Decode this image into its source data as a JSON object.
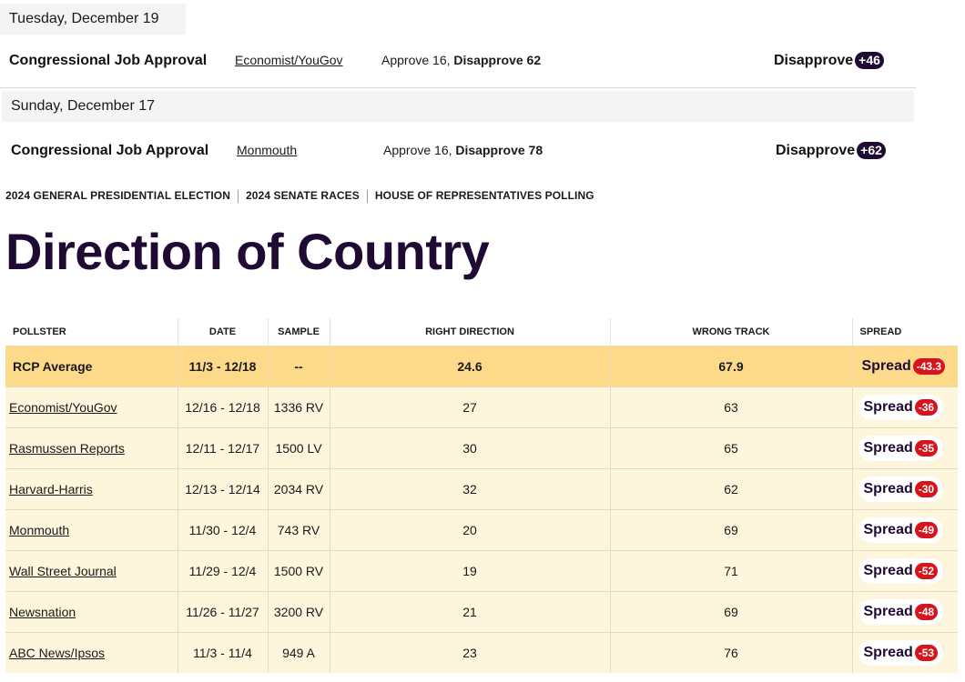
{
  "polls_by_day": [
    {
      "date": "Tuesday, December 19",
      "race": "Congressional Job Approval",
      "pollster": "Economist/YouGov",
      "approve_text": "Approve 16,",
      "disapprove_text": "Disapprove 62",
      "winner": "Disapprove",
      "margin": "+46"
    },
    {
      "date": "Sunday, December 17",
      "race": "Congressional Job Approval",
      "pollster": "Monmouth",
      "approve_text": "Approve 16,",
      "disapprove_text": "Disapprove 78",
      "winner": "Disapprove",
      "margin": "+62"
    }
  ],
  "topnav": {
    "items": [
      "2024 GENERAL PRESIDENTIAL ELECTION",
      "2024 SENATE RACES",
      "HOUSE OF REPRESENTATIVES POLLING"
    ]
  },
  "page_title": "Direction of Country",
  "table": {
    "headers": [
      "POLLSTER",
      "DATE",
      "SAMPLE",
      "RIGHT DIRECTION",
      "WRONG TRACK",
      "SPREAD"
    ],
    "average": {
      "pollster": "RCP Average",
      "date": "11/3 - 12/18",
      "sample": "--",
      "right": "24.6",
      "wrong": "67.9",
      "spread_label": "Spread",
      "spread": "-43.3"
    },
    "rows": [
      {
        "pollster": "Economist/YouGov",
        "date": "12/16 - 12/18",
        "sample": "1336 RV",
        "right": "27",
        "wrong": "63",
        "spread_label": "Spread",
        "spread": "-36"
      },
      {
        "pollster": "Rasmussen Reports",
        "date": "12/11 - 12/17",
        "sample": "1500 LV",
        "right": "30",
        "wrong": "65",
        "spread_label": "Spread",
        "spread": "-35"
      },
      {
        "pollster": "Harvard-Harris",
        "date": "12/13 - 12/14",
        "sample": "2034 RV",
        "right": "32",
        "wrong": "62",
        "spread_label": "Spread",
        "spread": "-30"
      },
      {
        "pollster": "Monmouth",
        "date": "11/30 - 12/4",
        "sample": "743 RV",
        "right": "20",
        "wrong": "69",
        "spread_label": "Spread",
        "spread": "-49"
      },
      {
        "pollster": "Wall Street Journal",
        "date": "11/29 - 12/4",
        "sample": "1500 RV",
        "right": "19",
        "wrong": "71",
        "spread_label": "Spread",
        "spread": "-52"
      },
      {
        "pollster": "Newsnation",
        "date": "11/26 - 11/27",
        "sample": "3200 RV",
        "right": "21",
        "wrong": "69",
        "spread_label": "Spread",
        "spread": "-48"
      },
      {
        "pollster": "ABC News/Ipsos",
        "date": "11/3 - 11/4",
        "sample": "949 A",
        "right": "23",
        "wrong": "76",
        "spread_label": "Spread",
        "spread": "-53"
      }
    ]
  },
  "colors": {
    "brand_dark": "#1f0a33",
    "spread_red": "#d7141b",
    "average_row": "#fdd98a",
    "poll_row": "#fdf5dc"
  }
}
